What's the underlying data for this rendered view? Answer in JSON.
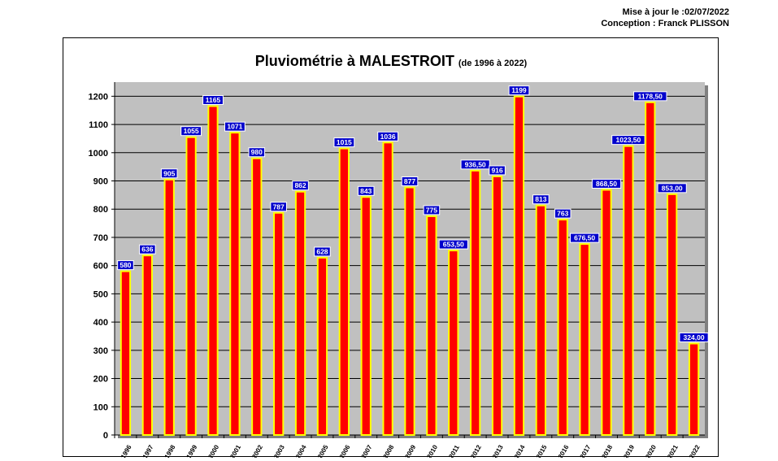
{
  "header": {
    "updated": "Mise à jour le :02/07/2022",
    "credit": "Conception : Franck PLISSON"
  },
  "colors": {
    "bar_fill": "#ff0000",
    "bar_border": "#ffff00",
    "plot_bg": "#c0c0c0",
    "label_bg": "#0000cc",
    "label_text": "#ffffff"
  },
  "chart_data": {
    "type": "bar",
    "title": "Pluviométrie à MALESTROIT",
    "subtitle": "(de 1996 à 2022)",
    "xlabel": "",
    "ylabel": "",
    "ylim": [
      0,
      1250
    ],
    "yticks": [
      0,
      100,
      200,
      300,
      400,
      500,
      600,
      700,
      800,
      900,
      1000,
      1100,
      1200
    ],
    "grid": true,
    "legend": "none",
    "categories": [
      "1996",
      "1997",
      "1998",
      "1999",
      "2000",
      "2001",
      "2002",
      "2003",
      "2004",
      "2005",
      "2006",
      "2007",
      "2008",
      "2009",
      "2010",
      "2011",
      "2012",
      "2013",
      "2014",
      "2015",
      "2016",
      "2017",
      "2018",
      "2019",
      "2020",
      "2021",
      "2022"
    ],
    "values": [
      580,
      636,
      905,
      1055,
      1165,
      1071,
      980,
      787,
      862,
      628,
      1015,
      843,
      1036,
      877,
      775,
      653.5,
      936.5,
      916,
      1199,
      813,
      763,
      676.5,
      868.5,
      1023.5,
      1178.5,
      853,
      324
    ],
    "labels": [
      "580",
      "636",
      "905",
      "1055",
      "1165",
      "1071",
      "980",
      "787",
      "862",
      "628",
      "1015",
      "843",
      "1036",
      "877",
      "775",
      "653,50",
      "936,50",
      "916",
      "1199",
      "813",
      "763",
      "676,50",
      "868,50",
      "1023,50",
      "1178,50",
      "853,00",
      "324,00"
    ]
  }
}
